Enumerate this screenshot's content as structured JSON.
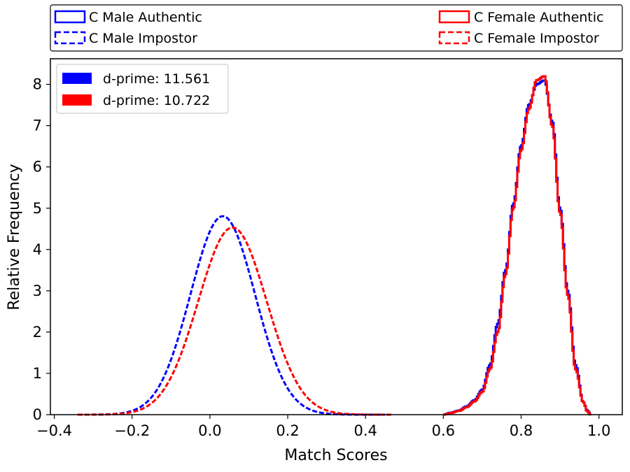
{
  "chart_data": {
    "type": "histogram",
    "xlabel": "Match Scores",
    "ylabel": "Relative Frequency",
    "xlim": [
      -0.41,
      1.06
    ],
    "ylim": [
      0,
      8.62
    ],
    "xticks": [
      -0.4,
      -0.2,
      0.0,
      0.2,
      0.4,
      0.6,
      0.8,
      1.0
    ],
    "xtick_labels": [
      "−0.4",
      "−0.2",
      "0.0",
      "0.2",
      "0.4",
      "0.6",
      "0.8",
      "1.0"
    ],
    "yticks": [
      0,
      1,
      2,
      3,
      4,
      5,
      6,
      7,
      8
    ],
    "ytick_labels": [
      "0",
      "1",
      "2",
      "3",
      "4",
      "5",
      "6",
      "7",
      "8"
    ],
    "grid": false,
    "legend_top": {
      "placement": "above-plot",
      "entries": [
        {
          "label": "C Male Authentic",
          "color": "#0000ff",
          "style": "solid"
        },
        {
          "label": "C Male Impostor",
          "color": "#0000ff",
          "style": "dashed"
        },
        {
          "label": "C Female Authentic",
          "color": "#ff0000",
          "style": "solid"
        },
        {
          "label": "C Female Impostor",
          "color": "#ff0000",
          "style": "dashed"
        }
      ]
    },
    "legend_inner": {
      "placement": "top-left",
      "entries": [
        {
          "label": "d-prime: 11.561",
          "color": "#0000ff"
        },
        {
          "label": "d-prime: 10.722",
          "color": "#ff0000"
        }
      ]
    },
    "series": [
      {
        "name": "C Male Impostor",
        "color": "#0000ff",
        "style": "dashed",
        "distribution": "normal",
        "mean": 0.033,
        "std": 0.083,
        "range": [
          -0.34,
          0.45
        ]
      },
      {
        "name": "C Female Impostor",
        "color": "#ff0000",
        "style": "dashed",
        "distribution": "normal",
        "mean": 0.058,
        "std": 0.088,
        "range": [
          -0.34,
          0.47
        ]
      },
      {
        "name": "C Male Authentic",
        "color": "#0000ff",
        "style": "solid",
        "distribution": "histogram",
        "x": [
          0.6,
          0.62,
          0.64,
          0.66,
          0.68,
          0.7,
          0.72,
          0.74,
          0.76,
          0.78,
          0.8,
          0.82,
          0.84,
          0.86,
          0.88,
          0.9,
          0.92,
          0.94,
          0.96,
          0.97,
          0.98
        ],
        "y": [
          0.0,
          0.05,
          0.1,
          0.2,
          0.35,
          0.6,
          1.2,
          2.2,
          3.5,
          5.1,
          6.5,
          7.5,
          8.0,
          8.1,
          7.1,
          5.0,
          3.0,
          1.2,
          0.3,
          0.1,
          0.0
        ]
      },
      {
        "name": "C Female Authentic",
        "color": "#ff0000",
        "style": "solid",
        "distribution": "histogram",
        "x": [
          0.6,
          0.62,
          0.64,
          0.66,
          0.68,
          0.7,
          0.72,
          0.74,
          0.76,
          0.78,
          0.8,
          0.82,
          0.84,
          0.86,
          0.88,
          0.9,
          0.92,
          0.94,
          0.96,
          0.97,
          0.98
        ],
        "y": [
          0.0,
          0.04,
          0.09,
          0.18,
          0.32,
          0.55,
          1.1,
          2.0,
          3.4,
          5.0,
          6.4,
          7.4,
          8.1,
          8.2,
          7.0,
          4.9,
          2.9,
          1.1,
          0.3,
          0.08,
          0.0
        ]
      }
    ]
  }
}
